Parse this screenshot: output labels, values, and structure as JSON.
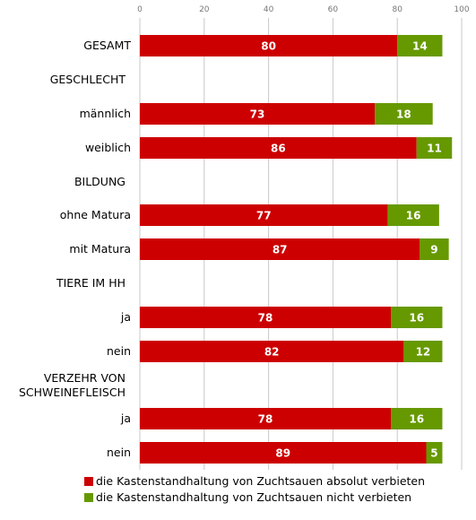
{
  "chart_data": {
    "type": "bar",
    "orientation": "horizontal",
    "stacked": true,
    "xlim": [
      0,
      100
    ],
    "x_ticks": [
      0,
      20,
      40,
      60,
      80,
      100
    ],
    "grid": "vertical",
    "legend_position": "bottom",
    "colors": {
      "verbieten": "#cc0000",
      "nicht_verbieten": "#669900"
    },
    "rows": [
      {
        "label": "GESAMT",
        "values": [
          80,
          14
        ]
      },
      {
        "label": "GESCHLECHT",
        "header": true
      },
      {
        "label": "männlich",
        "values": [
          73,
          18
        ]
      },
      {
        "label": "weiblich",
        "values": [
          86,
          11
        ]
      },
      {
        "label": "BILDUNG",
        "header": true
      },
      {
        "label": "ohne Matura",
        "values": [
          77,
          16
        ]
      },
      {
        "label": "mit Matura",
        "values": [
          87,
          9
        ]
      },
      {
        "label": "TIERE IM HH",
        "header": true
      },
      {
        "label": "ja",
        "values": [
          78,
          16
        ]
      },
      {
        "label": "nein",
        "values": [
          82,
          12
        ]
      },
      {
        "label": [
          "VERZEHR VON",
          "SCHWEINEFLEISCH"
        ],
        "header": true
      },
      {
        "label": "ja",
        "values": [
          78,
          16
        ]
      },
      {
        "label": "nein",
        "values": [
          89,
          5
        ]
      }
    ],
    "series": [
      {
        "name": "die Kastenstandhaltung von Zuchtsauen absolut verbieten"
      },
      {
        "name": "die Kastenstandhaltung von Zuchtsauen nicht verbieten"
      }
    ]
  }
}
